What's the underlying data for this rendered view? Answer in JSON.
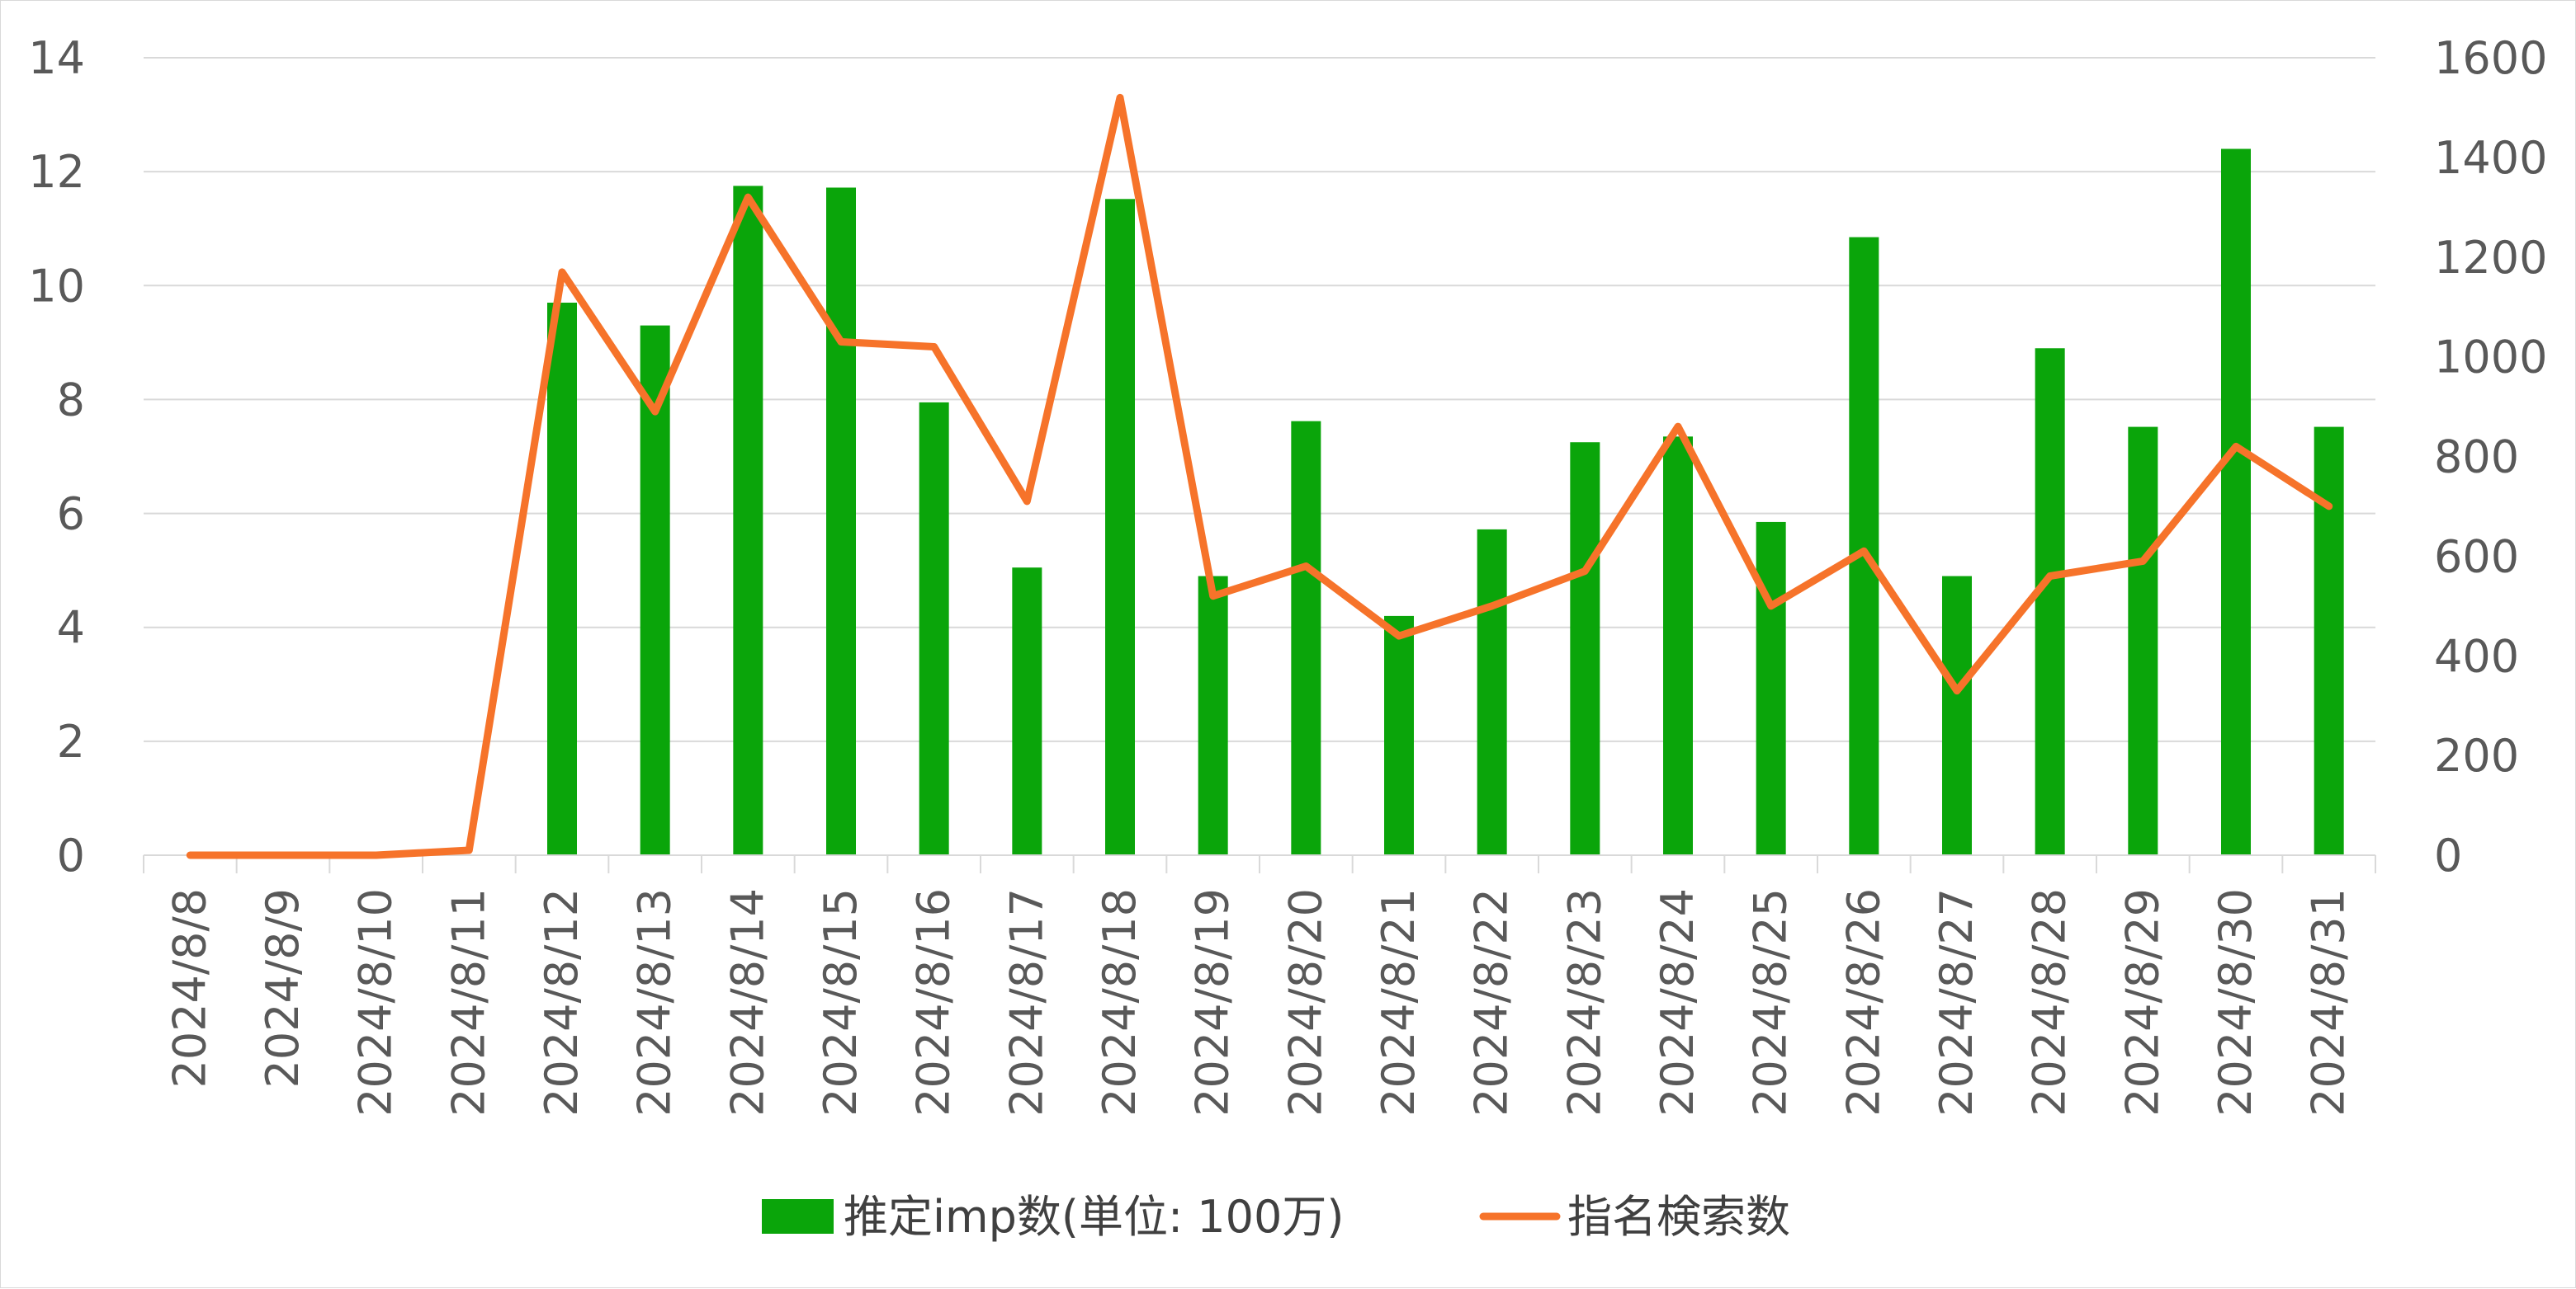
{
  "chart_data": {
    "type": "bar",
    "title": "",
    "xlabel": "",
    "categories": [
      "2024/8/8",
      "2024/8/9",
      "2024/8/10",
      "2024/8/11",
      "2024/8/12",
      "2024/8/13",
      "2024/8/14",
      "2024/8/15",
      "2024/8/16",
      "2024/8/17",
      "2024/8/18",
      "2024/8/19",
      "2024/8/20",
      "2024/8/21",
      "2024/8/22",
      "2024/8/23",
      "2024/8/24",
      "2024/8/25",
      "2024/8/26",
      "2024/8/27",
      "2024/8/28",
      "2024/8/29",
      "2024/8/30",
      "2024/8/31"
    ],
    "series": [
      {
        "name": "推定imp数(単位: 100万)",
        "type": "bar",
        "axis": "left",
        "color": "#0aa50a",
        "values": [
          0,
          0,
          0,
          0,
          9.7,
          9.3,
          11.75,
          11.72,
          7.95,
          5.05,
          11.52,
          4.9,
          7.62,
          4.2,
          5.72,
          7.25,
          7.35,
          5.85,
          10.85,
          4.9,
          8.9,
          7.52,
          12.4,
          7.52
        ]
      },
      {
        "name": "指名検索数",
        "type": "line",
        "axis": "right",
        "color": "#f6732a",
        "values": [
          0,
          0,
          0,
          10,
          1170,
          890,
          1320,
          1030,
          1020,
          710,
          1520,
          520,
          580,
          440,
          500,
          570,
          860,
          500,
          610,
          330,
          560,
          590,
          820,
          700
        ]
      }
    ],
    "y_left": {
      "ylim": [
        0,
        14
      ],
      "ticks": [
        "0",
        "2",
        "4",
        "6",
        "8",
        "10",
        "12",
        "14"
      ]
    },
    "y_right": {
      "ylim": [
        0,
        1600
      ],
      "ticks": [
        "0",
        "200",
        "400",
        "600",
        "800",
        "1000",
        "1200",
        "1400",
        "1600"
      ]
    },
    "grid": true,
    "gridline_color": "#d9d9d9",
    "axis_color": "#d9d9d9",
    "legend_position": "bottom"
  }
}
